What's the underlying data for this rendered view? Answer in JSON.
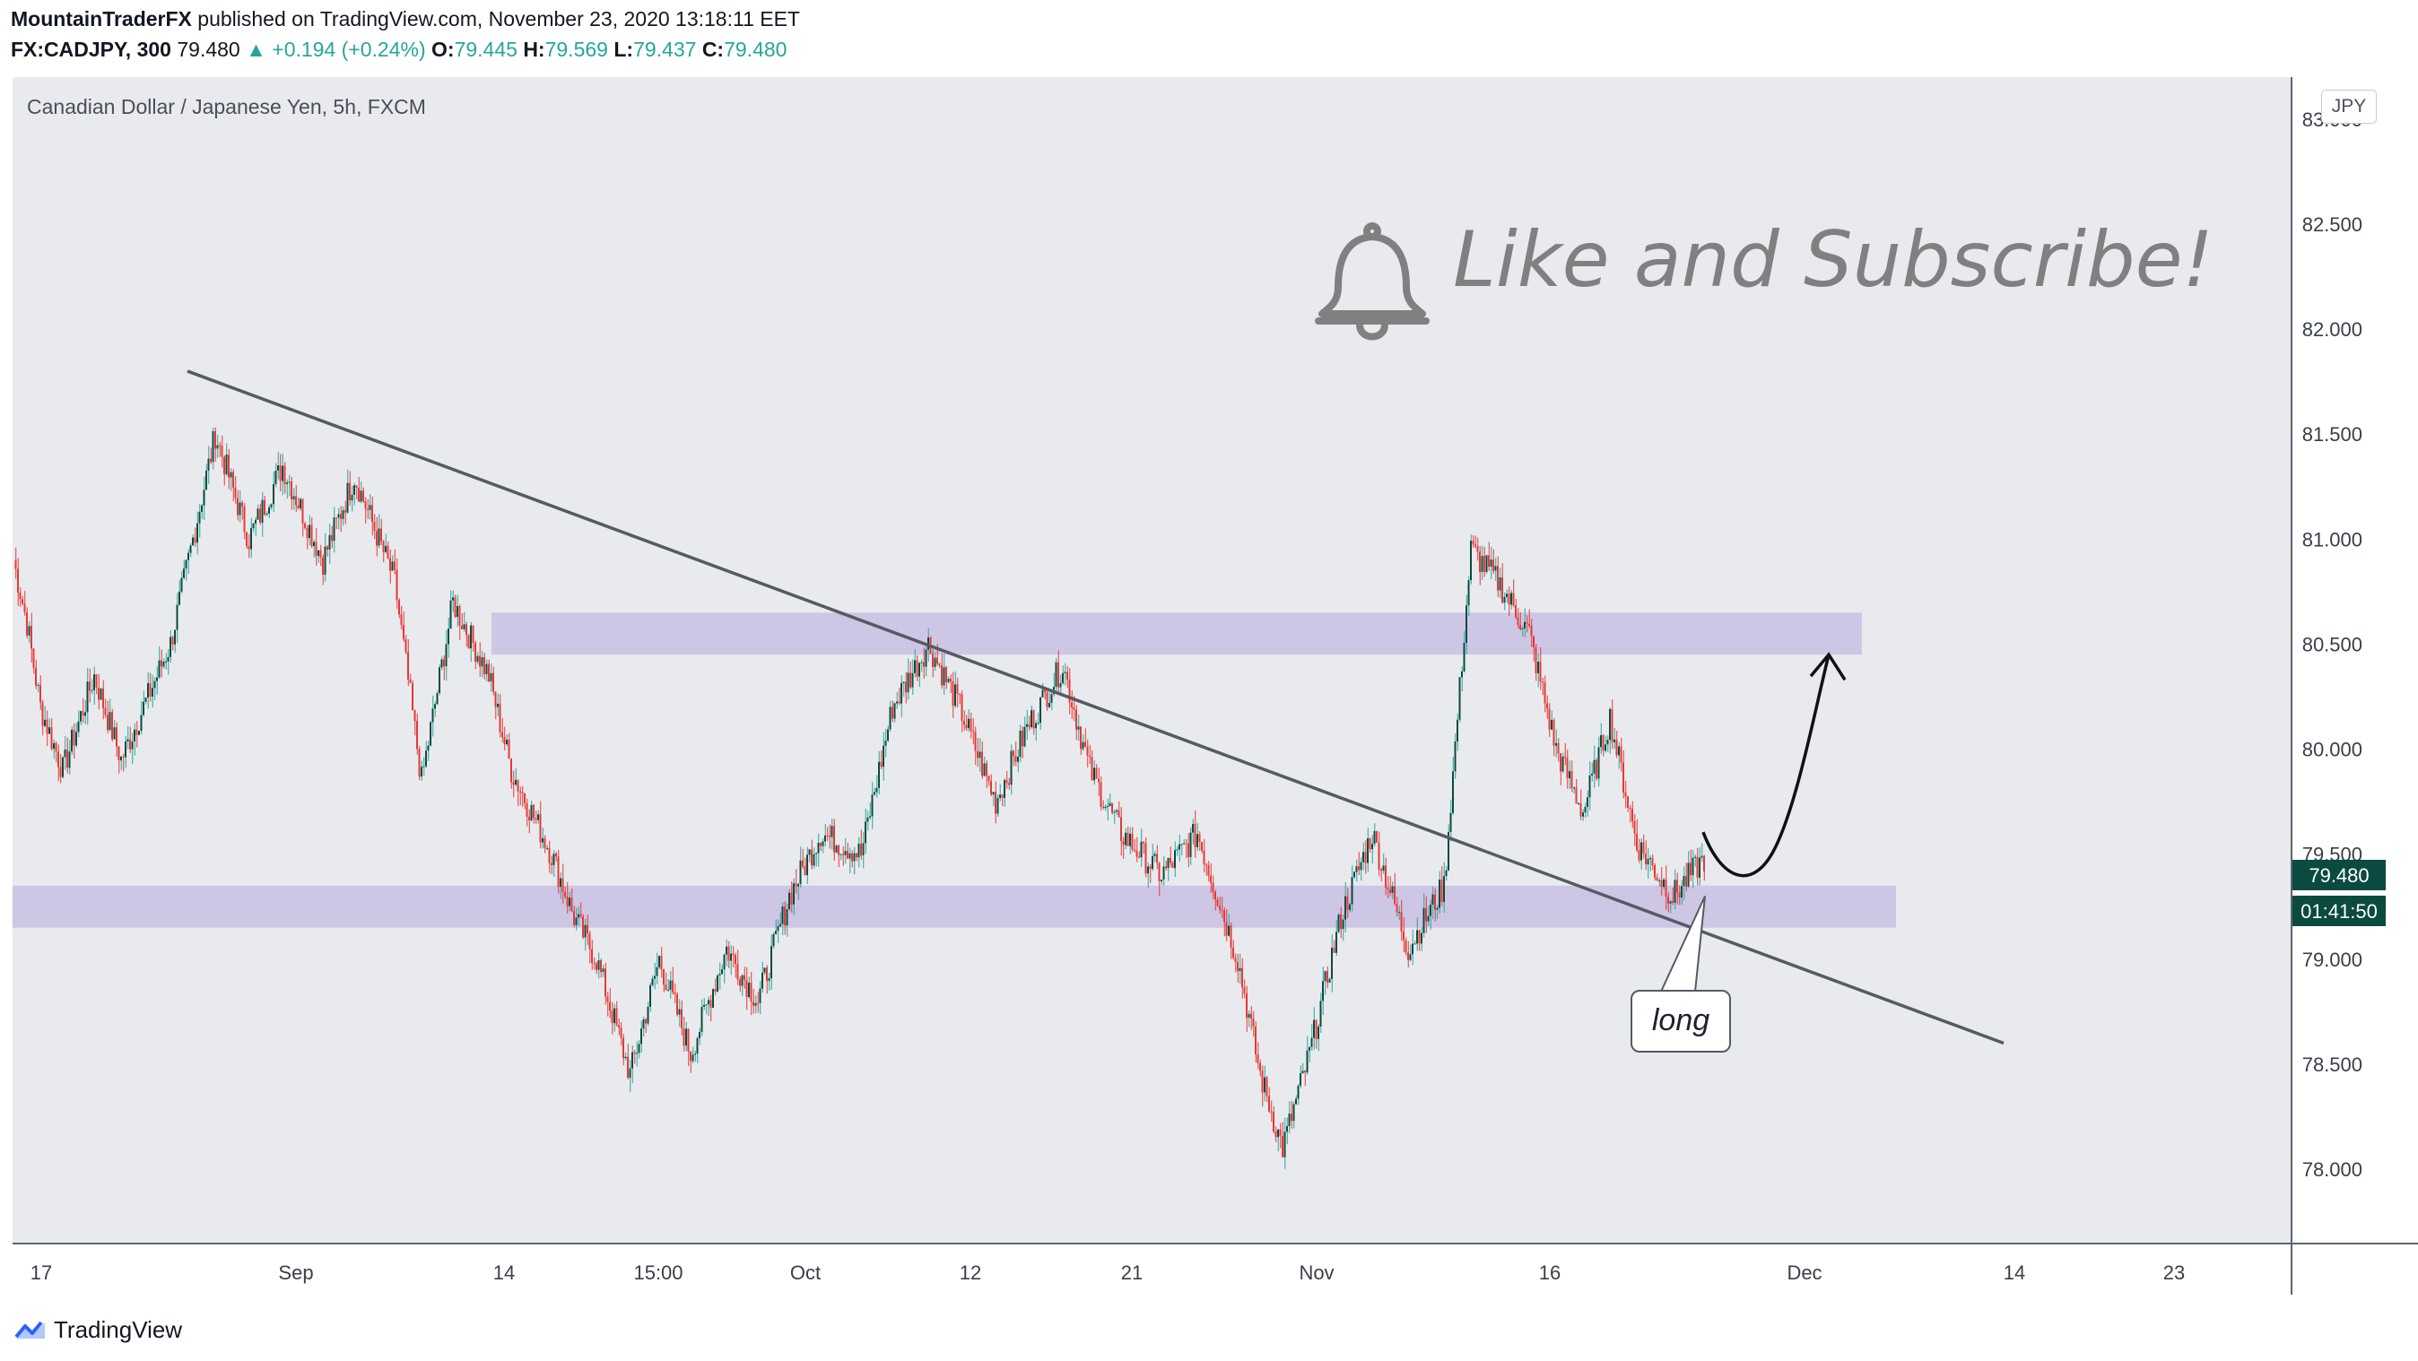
{
  "header": {
    "publisher": "MountainTraderFX",
    "published_text": "published on TradingView.com, November 23, 2020 13:18:11 EET",
    "symbol": "FX:CADJPY, 300",
    "last": "79.480",
    "change": "▲ +0.194 (+0.24%)",
    "open_label": "O:",
    "open": "79.445",
    "high_label": "H:",
    "high": "79.569",
    "low_label": "L:",
    "low": "79.437",
    "close_label": "C:",
    "close": "79.480"
  },
  "chart_title": "Canadian Dollar / Japanese Yen, 5h, FXCM",
  "currency_button": "JPY",
  "annotation_text": "Like and Subscribe!",
  "callout_text": "long",
  "brand": "TradingView",
  "colors": {
    "up": "#26a69a",
    "up_candle": "#0b4a40",
    "down": "#e53935",
    "zone": "#c9bfe3",
    "trendline": "#555a63",
    "background": "#e9eaee"
  },
  "chart_data": {
    "type": "candlestick",
    "symbol": "FX:CADJPY",
    "timeframe": "5h",
    "ylim": [
      77.65,
      83.2
    ],
    "y_ticks": [
      "83.000",
      "82.500",
      "82.000",
      "81.500",
      "81.000",
      "80.500",
      "80.000",
      "79.500",
      "79.000",
      "78.500",
      "78.000"
    ],
    "x_ticks": [
      "17",
      "Sep",
      "14",
      "15:00",
      "Oct",
      "12",
      "21",
      "Nov",
      "16",
      "Dec",
      "14",
      "23"
    ],
    "last_price_label": "79.480",
    "countdown_label": "01:41:50",
    "price_path": [
      [
        0,
        80.9
      ],
      [
        6,
        80.6
      ],
      [
        12,
        80.2
      ],
      [
        22,
        79.9
      ],
      [
        36,
        80.35
      ],
      [
        48,
        79.95
      ],
      [
        70,
        80.5
      ],
      [
        90,
        81.5
      ],
      [
        105,
        81.0
      ],
      [
        120,
        81.35
      ],
      [
        138,
        80.9
      ],
      [
        152,
        81.3
      ],
      [
        170,
        80.8
      ],
      [
        182,
        79.85
      ],
      [
        196,
        80.7
      ],
      [
        212,
        80.35
      ],
      [
        222,
        79.9
      ],
      [
        240,
        79.5
      ],
      [
        250,
        79.2
      ],
      [
        260,
        79.0
      ],
      [
        275,
        78.45
      ],
      [
        288,
        79.0
      ],
      [
        302,
        78.55
      ],
      [
        318,
        79.05
      ],
      [
        332,
        78.8
      ],
      [
        346,
        79.3
      ],
      [
        360,
        79.6
      ],
      [
        378,
        79.5
      ],
      [
        392,
        80.2
      ],
      [
        408,
        80.5
      ],
      [
        422,
        80.2
      ],
      [
        438,
        79.75
      ],
      [
        452,
        80.1
      ],
      [
        468,
        80.4
      ],
      [
        480,
        79.9
      ],
      [
        494,
        79.6
      ],
      [
        512,
        79.4
      ],
      [
        528,
        79.6
      ],
      [
        546,
        79.0
      ],
      [
        556,
        78.45
      ],
      [
        566,
        78.1
      ],
      [
        578,
        78.55
      ],
      [
        592,
        79.2
      ],
      [
        606,
        79.6
      ],
      [
        622,
        79.05
      ],
      [
        638,
        79.35
      ],
      [
        650,
        80.95
      ],
      [
        662,
        80.8
      ],
      [
        676,
        80.55
      ],
      [
        688,
        80.0
      ],
      [
        700,
        79.7
      ],
      [
        712,
        80.15
      ],
      [
        724,
        79.55
      ],
      [
        740,
        79.3
      ],
      [
        754,
        79.48
      ]
    ],
    "horizontal_zones": [
      {
        "from": 80.45,
        "to": 80.65
      },
      {
        "from": 79.15,
        "to": 79.35
      }
    ],
    "trendline": {
      "start": [
        78,
        81.8
      ],
      "end": [
        888,
        78.6
      ]
    },
    "projection_arrow": {
      "from": [
        758,
        79.4
      ],
      "to": [
        810,
        80.45
      ]
    }
  }
}
